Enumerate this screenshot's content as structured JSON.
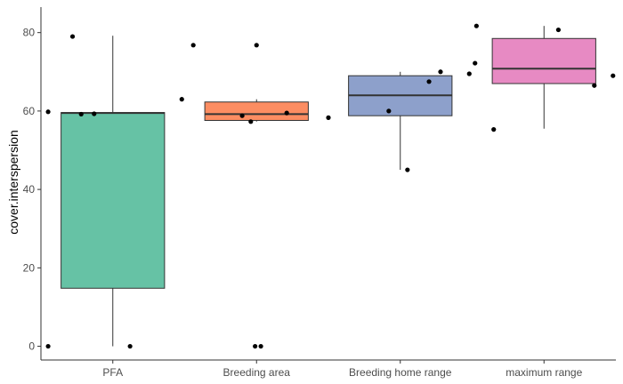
{
  "chart_data": {
    "type": "boxplot",
    "title": "",
    "xlabel": "",
    "ylabel": "cover.interspersion",
    "ylim": [
      -3.5,
      86.5
    ],
    "yticks": [
      0,
      20,
      40,
      60,
      80
    ],
    "grid": false,
    "legend": "none",
    "categories": [
      "PFA",
      "Breeding area",
      "Breeding home range",
      "maximum range"
    ],
    "colors": [
      "#66c2a5",
      "#fc8d62",
      "#8da0cb",
      "#e78ac3"
    ],
    "boxes": [
      {
        "category": "PFA",
        "whisker_low": 0,
        "q1": 14.8,
        "median": 59.5,
        "q3": 59.6,
        "whisker_high": 79.2
      },
      {
        "category": "Breeding area",
        "whisker_low": 57.3,
        "q1": 57.6,
        "median": 59.2,
        "q3": 62.3,
        "whisker_high": 63.0
      },
      {
        "category": "Breeding home range",
        "whisker_low": 45.0,
        "q1": 58.8,
        "median": 64.0,
        "q3": 69.0,
        "whisker_high": 70.0
      },
      {
        "category": "maximum range",
        "whisker_low": 55.5,
        "q1": 67.0,
        "median": 70.8,
        "q3": 78.5,
        "whisker_high": 81.7
      }
    ],
    "points": [
      {
        "category": "PFA",
        "jitter": -0.45,
        "y": 0
      },
      {
        "category": "PFA",
        "jitter": 0.12,
        "y": 0
      },
      {
        "category": "PFA",
        "jitter": -0.28,
        "y": 79.0
      },
      {
        "category": "PFA",
        "jitter": -0.45,
        "y": 59.8
      },
      {
        "category": "PFA",
        "jitter": -0.22,
        "y": 59.2
      },
      {
        "category": "PFA",
        "jitter": -0.13,
        "y": 59.3
      },
      {
        "category": "Breeding area",
        "jitter": -0.44,
        "y": 76.8
      },
      {
        "category": "Breeding area",
        "jitter": 0.0,
        "y": 76.8
      },
      {
        "category": "Breeding area",
        "jitter": -0.52,
        "y": 63.0
      },
      {
        "category": "Breeding area",
        "jitter": -0.1,
        "y": 58.8
      },
      {
        "category": "Breeding area",
        "jitter": -0.04,
        "y": 57.3
      },
      {
        "category": "Breeding area",
        "jitter": 0.21,
        "y": 59.5
      },
      {
        "category": "Breeding area",
        "jitter": -0.01,
        "y": 0
      },
      {
        "category": "Breeding area",
        "jitter": 0.03,
        "y": 0
      },
      {
        "category": "Breeding home range",
        "jitter": -0.5,
        "y": 58.3
      },
      {
        "category": "Breeding home range",
        "jitter": -0.08,
        "y": 60.0
      },
      {
        "category": "Breeding home range",
        "jitter": 0.05,
        "y": 45.0
      },
      {
        "category": "Breeding home range",
        "jitter": 0.2,
        "y": 67.5
      },
      {
        "category": "Breeding home range",
        "jitter": 0.28,
        "y": 70.0
      },
      {
        "category": "Breeding home range",
        "jitter": 0.48,
        "y": 69.5
      },
      {
        "category": "maximum range",
        "jitter": -0.47,
        "y": 81.7
      },
      {
        "category": "maximum range",
        "jitter": -0.48,
        "y": 72.2
      },
      {
        "category": "maximum range",
        "jitter": -0.35,
        "y": 55.3
      },
      {
        "category": "maximum range",
        "jitter": 0.1,
        "y": 80.7
      },
      {
        "category": "maximum range",
        "jitter": 0.35,
        "y": 66.5
      },
      {
        "category": "maximum range",
        "jitter": 0.48,
        "y": 69.0
      }
    ]
  }
}
